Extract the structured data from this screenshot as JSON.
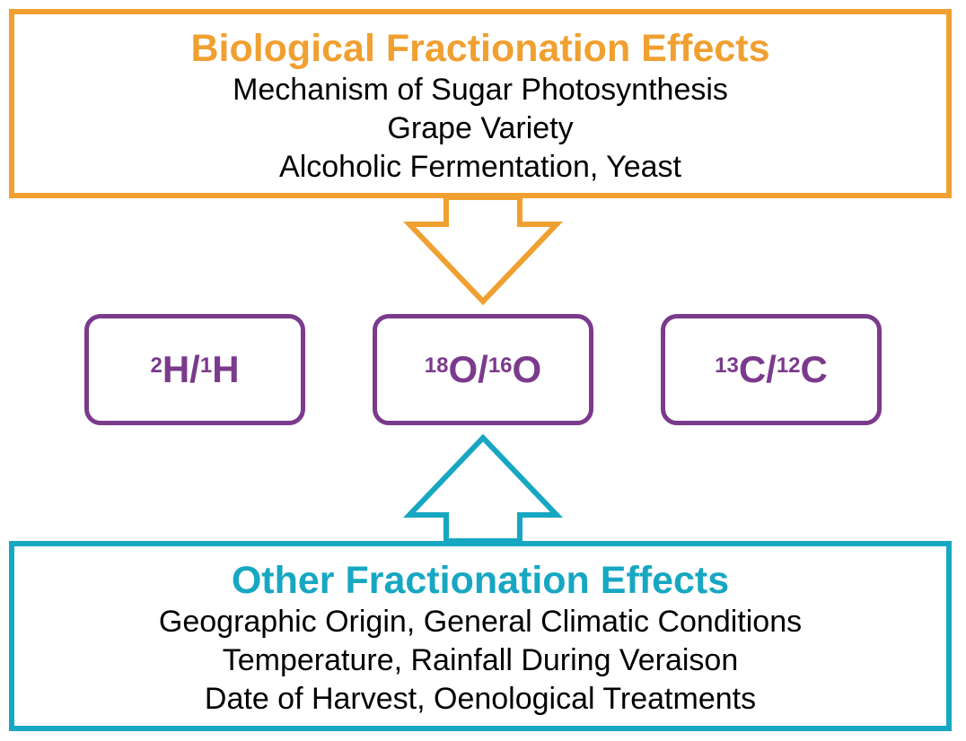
{
  "biological": {
    "title": "Biological Fractionation Effects",
    "items": [
      "Mechanism of Sugar Photosynthesis",
      "Grape Variety",
      "Alcoholic Fermentation, Yeast"
    ]
  },
  "isotope_ratios": [
    {
      "heavy_mass": "2",
      "heavy_element": "H",
      "light_mass": "1",
      "light_element": "H"
    },
    {
      "heavy_mass": "18",
      "heavy_element": "O",
      "light_mass": "16",
      "light_element": "O"
    },
    {
      "heavy_mass": "13",
      "heavy_element": "C",
      "light_mass": "12",
      "light_element": "C"
    }
  ],
  "other": {
    "title": "Other Fractionation Effects",
    "items": [
      "Geographic Origin, General Climatic Conditions",
      "Temperature, Rainfall During Veraison",
      "Date of Harvest, Oenological Treatments"
    ]
  },
  "colors": {
    "biological": "#f0a030",
    "ratios": "#7b3a8c",
    "other": "#17a7c2"
  }
}
